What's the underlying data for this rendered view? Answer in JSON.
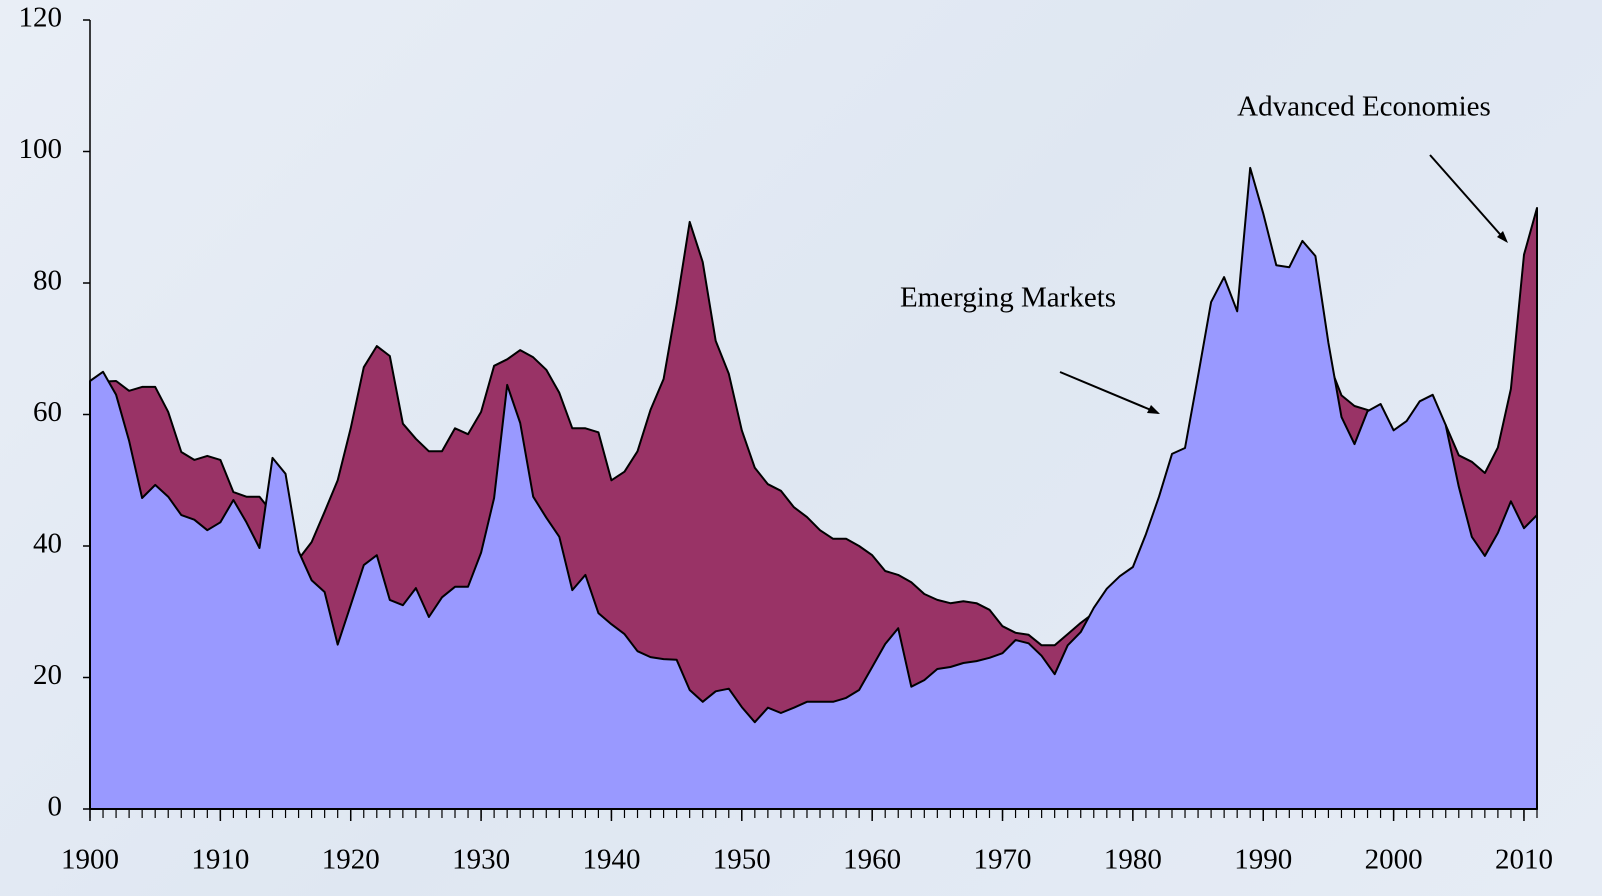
{
  "chart_data": {
    "type": "area",
    "x": [
      1900,
      1901,
      1902,
      1903,
      1904,
      1905,
      1906,
      1907,
      1908,
      1909,
      1910,
      1911,
      1912,
      1913,
      1914,
      1915,
      1916,
      1917,
      1918,
      1919,
      1920,
      1921,
      1922,
      1923,
      1924,
      1925,
      1926,
      1927,
      1928,
      1929,
      1930,
      1931,
      1932,
      1933,
      1934,
      1935,
      1936,
      1937,
      1938,
      1939,
      1940,
      1941,
      1942,
      1943,
      1944,
      1945,
      1946,
      1947,
      1948,
      1949,
      1950,
      1951,
      1952,
      1953,
      1954,
      1955,
      1956,
      1957,
      1958,
      1959,
      1960,
      1961,
      1962,
      1963,
      1964,
      1965,
      1966,
      1967,
      1968,
      1969,
      1970,
      1971,
      1972,
      1973,
      1974,
      1975,
      1976,
      1977,
      1978,
      1979,
      1980,
      1981,
      1982,
      1983,
      1984,
      1985,
      1986,
      1987,
      1988,
      1989,
      1990,
      1991,
      1992,
      1993,
      1994,
      1995,
      1996,
      1997,
      1998,
      1999,
      2000,
      2001,
      2002,
      2003,
      2004,
      2005,
      2006,
      2007,
      2008,
      2009,
      2010,
      2011
    ],
    "series": [
      {
        "name": "Advanced Economies",
        "color": "#993366",
        "values": [
          64,
          65,
          65.1,
          63.6,
          64.2,
          64.2,
          60.4,
          54.3,
          53.1,
          53.7,
          53.1,
          48.2,
          47.5,
          47.5,
          45,
          42,
          38,
          40.6,
          45.2,
          50,
          57.9,
          67.2,
          70.4,
          68.9,
          58.6,
          56.3,
          54.4,
          54.4,
          57.9,
          57,
          60.4,
          67.4,
          68.4,
          69.8,
          68.7,
          66.8,
          63.3,
          57.9,
          57.9,
          57.3,
          50,
          51.3,
          54.4,
          60.7,
          65.4,
          76.7,
          89.3,
          83.2,
          71.2,
          66.2,
          57.6,
          51.9,
          49.4,
          48.4,
          45.9,
          44.4,
          42.4,
          41.1,
          41.1,
          40,
          38.6,
          36.2,
          35.6,
          34.5,
          32.7,
          31.8,
          31.3,
          31.6,
          31.3,
          30.3,
          27.8,
          26.8,
          26.5,
          24.9,
          24.9,
          26.6,
          28.3,
          29.8,
          32,
          34,
          35,
          39,
          44,
          50,
          52,
          60,
          70,
          74,
          72,
          88,
          85,
          78,
          78,
          80,
          79,
          68,
          62.9,
          61.3,
          60.7,
          60,
          57,
          58,
          60,
          61,
          58.4,
          53.8,
          52.8,
          51.1,
          55,
          63.9,
          84.3,
          91.4
        ]
      },
      {
        "name": "Emerging Markets",
        "color": "#9999ff",
        "values": [
          65.1,
          66.5,
          63,
          56,
          47.3,
          49.3,
          47.5,
          44.7,
          44,
          42.4,
          43.6,
          47,
          43.6,
          39.7,
          53.4,
          51,
          39.2,
          34.8,
          33,
          25,
          31,
          37.1,
          38.6,
          31.8,
          31,
          33.6,
          29.2,
          32.2,
          33.8,
          33.8,
          39,
          47.3,
          64.5,
          58.7,
          47.5,
          44.3,
          41.4,
          33.3,
          35.6,
          29.8,
          28.1,
          26.6,
          24,
          23.1,
          22.8,
          22.7,
          18.1,
          16.3,
          17.9,
          18.3,
          15.5,
          13.2,
          15.4,
          14.6,
          15.4,
          16.3,
          16.3,
          16.3,
          16.9,
          18.1,
          21.6,
          25.1,
          27.5,
          18.6,
          19.6,
          21.3,
          21.6,
          22.2,
          22.5,
          23,
          23.7,
          25.7,
          25.2,
          23.3,
          20.5,
          24.9,
          26.9,
          30.6,
          33.5,
          35.4,
          36.8,
          41.8,
          47.5,
          54,
          54.9,
          65.9,
          77.1,
          80.9,
          75.7,
          97.5,
          90.6,
          82.7,
          82.4,
          86.4,
          84.1,
          70.9,
          59.6,
          55.5,
          60.5,
          61.6,
          57.6,
          59,
          62,
          63,
          58.4,
          49,
          41.4,
          38.5,
          42,
          46.8,
          42.7,
          44.7
        ]
      }
    ],
    "xlim": [
      1900,
      2011
    ],
    "xticks": [
      1900,
      1910,
      1920,
      1930,
      1940,
      1950,
      1960,
      1970,
      1980,
      1990,
      2000,
      2010
    ],
    "ylim": [
      0,
      120
    ],
    "yticks": [
      0,
      20,
      40,
      60,
      80,
      100,
      120
    ]
  }
}
